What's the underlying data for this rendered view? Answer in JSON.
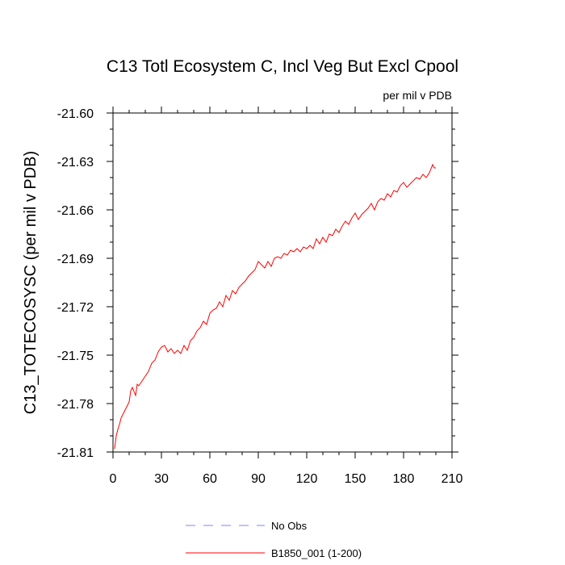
{
  "chart_data": {
    "type": "line",
    "title": "C13 Totl Ecosystem C, Incl Veg But Excl Cpool",
    "units_label": "per mil v PDB",
    "xlabel": "",
    "ylabel": "C13_TOTECOSYSC  (per mil v PDB)",
    "xlim": [
      0,
      210
    ],
    "ylim": [
      -21.81,
      -21.6
    ],
    "x_ticks": [
      0,
      30,
      60,
      90,
      120,
      150,
      180,
      210
    ],
    "x_tick_labels": [
      "0",
      "30",
      "60",
      "90",
      "120",
      "150",
      "180",
      "210"
    ],
    "y_ticks": [
      -21.6,
      -21.63,
      -21.66,
      -21.69,
      -21.72,
      -21.75,
      -21.78,
      -21.81
    ],
    "y_tick_labels": [
      "-21.60",
      "-21.63",
      "-21.66",
      "-21.69",
      "-21.72",
      "-21.75",
      "-21.78",
      "-21.81"
    ],
    "grid": false,
    "legend_position": "bottom-center",
    "series": [
      {
        "name": "No Obs",
        "color": "#8080ff",
        "dashed": true,
        "x": [],
        "y": []
      },
      {
        "name": "B1850_001 (1-200)",
        "color": "#ff0000",
        "dashed": false,
        "x": [
          1,
          2,
          3,
          4,
          5,
          7,
          9,
          10,
          11,
          12,
          14,
          15,
          16,
          18,
          20,
          22,
          24,
          26,
          28,
          30,
          32,
          34,
          36,
          38,
          40,
          42,
          44,
          46,
          48,
          50,
          52,
          54,
          56,
          58,
          60,
          62,
          64,
          66,
          68,
          70,
          72,
          74,
          76,
          78,
          80,
          82,
          84,
          86,
          88,
          90,
          92,
          94,
          96,
          98,
          100,
          102,
          104,
          106,
          108,
          110,
          112,
          114,
          116,
          118,
          120,
          122,
          124,
          126,
          128,
          130,
          132,
          134,
          136,
          138,
          140,
          142,
          144,
          146,
          148,
          150,
          152,
          154,
          156,
          158,
          160,
          162,
          164,
          166,
          168,
          170,
          172,
          174,
          176,
          178,
          180,
          182,
          184,
          186,
          188,
          190,
          192,
          194,
          196,
          198,
          199,
          200
        ],
        "y": [
          -21.808,
          -21.8,
          -21.796,
          -21.793,
          -21.789,
          -21.785,
          -21.781,
          -21.779,
          -21.772,
          -21.77,
          -21.775,
          -21.768,
          -21.769,
          -21.766,
          -21.763,
          -21.76,
          -21.755,
          -21.753,
          -21.748,
          -21.745,
          -21.744,
          -21.748,
          -21.746,
          -21.749,
          -21.747,
          -21.749,
          -21.744,
          -21.747,
          -21.741,
          -21.739,
          -21.735,
          -21.733,
          -21.729,
          -21.731,
          -21.724,
          -21.722,
          -21.721,
          -21.717,
          -21.72,
          -21.713,
          -21.716,
          -21.71,
          -21.712,
          -21.708,
          -21.706,
          -21.704,
          -21.701,
          -21.699,
          -21.697,
          -21.692,
          -21.694,
          -21.696,
          -21.692,
          -21.695,
          -21.69,
          -21.689,
          -21.69,
          -21.687,
          -21.688,
          -21.685,
          -21.686,
          -21.684,
          -21.686,
          -21.683,
          -21.684,
          -21.682,
          -21.684,
          -21.678,
          -21.681,
          -21.677,
          -21.68,
          -21.675,
          -21.676,
          -21.672,
          -21.674,
          -21.67,
          -21.667,
          -21.669,
          -21.665,
          -21.662,
          -21.666,
          -21.663,
          -21.661,
          -21.659,
          -21.656,
          -21.66,
          -21.655,
          -21.653,
          -21.654,
          -21.65,
          -21.652,
          -21.648,
          -21.649,
          -21.645,
          -21.643,
          -21.646,
          -21.644,
          -21.642,
          -21.64,
          -21.641,
          -21.638,
          -21.64,
          -21.637,
          -21.632,
          -21.634,
          -21.634
        ]
      }
    ]
  }
}
